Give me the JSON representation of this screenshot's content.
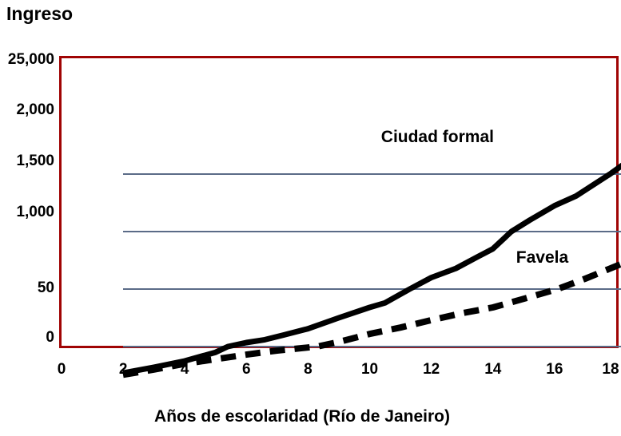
{
  "chart_data": {
    "type": "line",
    "title": "Ingreso",
    "xlabel": "Años de escolaridad (Río de Janeiro)",
    "ylabel": "Ingreso",
    "xlim": [
      0,
      18
    ],
    "x_ticks": [
      0,
      2,
      4,
      6,
      8,
      10,
      12,
      14,
      16,
      18
    ],
    "y_tick_labels_bottom_up": [
      "0",
      "50",
      "1,000",
      "1,500",
      "2,000",
      "25,000"
    ],
    "y_scale_note": "y values of points are in gridline units: 0='0', 1='50', 2='1,000', 3='1,500', 4='2,000', 5='25,000' (axis is evenly spaced category-style)",
    "grid": "horizontal-only",
    "legend": "inline-annotations",
    "series": [
      {
        "name": "Ciudad formal",
        "style": "solid",
        "color": "#000000",
        "stroke_width": 7,
        "points": [
          [
            0,
            0.54
          ],
          [
            1,
            0.64
          ],
          [
            2,
            0.75
          ],
          [
            3,
            0.9
          ],
          [
            3.4,
            1.0
          ],
          [
            4,
            1.07
          ],
          [
            4.6,
            1.12
          ],
          [
            5.2,
            1.2
          ],
          [
            6,
            1.31
          ],
          [
            7,
            1.5
          ],
          [
            8,
            1.68
          ],
          [
            8.5,
            1.76
          ],
          [
            9.3,
            2.0
          ],
          [
            10,
            2.2
          ],
          [
            10.8,
            2.36
          ],
          [
            11.5,
            2.56
          ],
          [
            12,
            2.7
          ],
          [
            12.6,
            3.0
          ],
          [
            13.2,
            3.2
          ],
          [
            14,
            3.45
          ],
          [
            14.7,
            3.62
          ],
          [
            15.8,
            4.0
          ],
          [
            16.5,
            4.27
          ],
          [
            17.5,
            4.64
          ]
        ]
      },
      {
        "name": "Favela",
        "style": "dashed",
        "color": "#000000",
        "stroke_width": 8,
        "dash": "19 12",
        "points": [
          [
            0,
            0.51
          ],
          [
            1,
            0.6
          ],
          [
            2,
            0.7
          ],
          [
            3,
            0.78
          ],
          [
            4,
            0.86
          ],
          [
            5,
            0.93
          ],
          [
            6.3,
            1.0
          ],
          [
            7,
            1.08
          ],
          [
            8,
            1.22
          ],
          [
            9,
            1.33
          ],
          [
            10,
            1.46
          ],
          [
            11,
            1.58
          ],
          [
            12,
            1.68
          ],
          [
            13,
            1.83
          ],
          [
            14.1,
            2.0
          ],
          [
            15,
            2.18
          ],
          [
            16,
            2.4
          ],
          [
            17.2,
            2.67
          ]
        ]
      }
    ],
    "annotations": [
      {
        "text": "Ciudad formal",
        "x": 12.2,
        "y": 3.62
      },
      {
        "text": "Favela",
        "x": 15.6,
        "y": 1.53
      }
    ]
  },
  "colors": {
    "plot_border": "#A00404",
    "gridline": "#5B6B87",
    "background": "#FFFFFF",
    "text": "#000000"
  }
}
